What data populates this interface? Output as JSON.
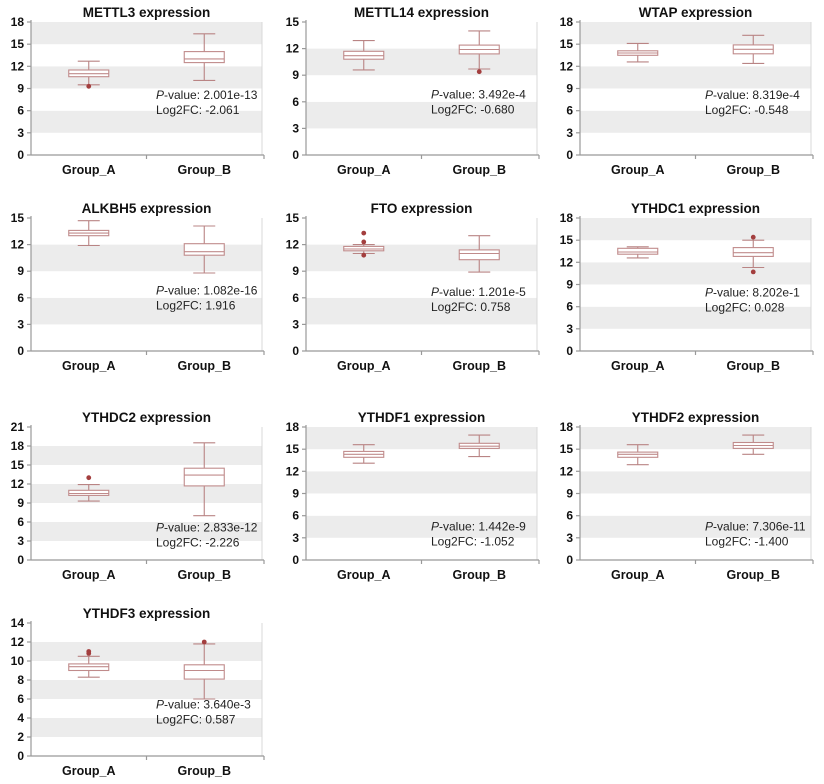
{
  "figure": {
    "description": "Grid of gene expression boxplots comparing Group_A vs Group_B",
    "columns": 3,
    "rows": 4
  },
  "colors": {
    "background": "#ffffff",
    "band_gray": "#ececec",
    "band_white": "#ffffff",
    "axis_line": "#999999",
    "plot_border": "#d9d9d9",
    "box_stroke": "#c08b8b",
    "whisker_stroke": "#b98484",
    "outlier_fill": "#a33e3e",
    "label_text": "#111111",
    "annotation_text": "#222222"
  },
  "annotation_labels": {
    "p_italic": "P",
    "p_rest": "-value:",
    "fc": "Log2FC:"
  },
  "chart_data": {
    "type": "boxplot",
    "categories": [
      "Group_A",
      "Group_B"
    ],
    "grid_bands": "horizontal gray/white bands, one per axis step, gray on odd steps from bottom",
    "panels": [
      {
        "gene": "METTL3",
        "title": "METTL3 expression",
        "ylim": [
          0,
          18
        ],
        "ystep": 3,
        "yticks": [
          0,
          3,
          6,
          9,
          12,
          15,
          18
        ],
        "p_value": "2.001e-13",
        "log2fc": "-2.061",
        "ann_value": 7.6,
        "groups": [
          {
            "label": "Group_A",
            "whisker_low": 9.5,
            "q1": 10.6,
            "median": 11.0,
            "q3": 11.5,
            "whisker_high": 12.7,
            "outliers": [
              9.3
            ]
          },
          {
            "label": "Group_B",
            "whisker_low": 10.1,
            "q1": 12.5,
            "median": 13.0,
            "q3": 14.0,
            "whisker_high": 16.4,
            "outliers": []
          }
        ]
      },
      {
        "gene": "METTL14",
        "title": "METTL14 expression",
        "ylim": [
          0,
          15
        ],
        "ystep": 3,
        "yticks": [
          0,
          3,
          6,
          9,
          12,
          15
        ],
        "p_value": "3.492e-4",
        "log2fc": "-0.680",
        "ann_value": 6.4,
        "groups": [
          {
            "label": "Group_A",
            "whisker_low": 9.6,
            "q1": 10.8,
            "median": 11.2,
            "q3": 11.7,
            "whisker_high": 12.9,
            "outliers": []
          },
          {
            "label": "Group_B",
            "whisker_low": 9.7,
            "q1": 11.4,
            "median": 11.9,
            "q3": 12.4,
            "whisker_high": 14.0,
            "outliers": [
              9.4
            ]
          }
        ]
      },
      {
        "gene": "WTAP",
        "title": "WTAP expression",
        "ylim": [
          0,
          18
        ],
        "ystep": 3,
        "yticks": [
          0,
          3,
          6,
          9,
          12,
          15,
          18
        ],
        "p_value": "8.319e-4",
        "log2fc": "-0.548",
        "ann_value": 7.6,
        "groups": [
          {
            "label": "Group_A",
            "whisker_low": 12.6,
            "q1": 13.5,
            "median": 13.8,
            "q3": 14.1,
            "whisker_high": 15.1,
            "outliers": []
          },
          {
            "label": "Group_B",
            "whisker_low": 12.4,
            "q1": 13.7,
            "median": 14.3,
            "q3": 14.9,
            "whisker_high": 16.2,
            "outliers": []
          }
        ]
      },
      {
        "gene": "ALKBH5",
        "title": "ALKBH5 expression",
        "ylim": [
          0,
          15
        ],
        "ystep": 3,
        "yticks": [
          0,
          3,
          6,
          9,
          12,
          15
        ],
        "p_value": "1.082e-16",
        "log2fc": "1.916",
        "ann_value": 6.4,
        "groups": [
          {
            "label": "Group_A",
            "whisker_low": 11.9,
            "q1": 13.0,
            "median": 13.3,
            "q3": 13.6,
            "whisker_high": 14.7,
            "outliers": []
          },
          {
            "label": "Group_B",
            "whisker_low": 8.8,
            "q1": 10.8,
            "median": 11.2,
            "q3": 12.1,
            "whisker_high": 14.1,
            "outliers": []
          }
        ]
      },
      {
        "gene": "FTO",
        "title": "FTO expression",
        "ylim": [
          0,
          15
        ],
        "ystep": 3,
        "yticks": [
          0,
          3,
          6,
          9,
          12,
          15
        ],
        "p_value": "1.201e-5",
        "log2fc": "0.758",
        "ann_value": 6.2,
        "groups": [
          {
            "label": "Group_A",
            "whisker_low": 11.0,
            "q1": 11.3,
            "median": 11.5,
            "q3": 11.8,
            "whisker_high": 12.0,
            "outliers": [
              13.3,
              12.3,
              10.8
            ]
          },
          {
            "label": "Group_B",
            "whisker_low": 8.9,
            "q1": 10.3,
            "median": 11.0,
            "q3": 11.4,
            "whisker_high": 13.0,
            "outliers": []
          }
        ]
      },
      {
        "gene": "YTHDC1",
        "title": "YTHDC1 expression",
        "ylim": [
          0,
          18
        ],
        "ystep": 3,
        "yticks": [
          0,
          3,
          6,
          9,
          12,
          15,
          18
        ],
        "p_value": "8.202e-1",
        "log2fc": "0.028",
        "ann_value": 7.4,
        "groups": [
          {
            "label": "Group_A",
            "whisker_low": 12.6,
            "q1": 13.1,
            "median": 13.4,
            "q3": 13.9,
            "whisker_high": 14.1,
            "outliers": []
          },
          {
            "label": "Group_B",
            "whisker_low": 11.3,
            "q1": 12.8,
            "median": 13.3,
            "q3": 14.0,
            "whisker_high": 15.0,
            "outliers": [
              15.4,
              10.7
            ]
          }
        ]
      },
      {
        "gene": "YTHDC2",
        "title": "YTHDC2 expression",
        "ylim": [
          0,
          21
        ],
        "ystep": 3,
        "yticks": [
          0,
          3,
          6,
          9,
          12,
          15,
          18,
          21
        ],
        "p_value": "2.833e-12",
        "log2fc": "-2.226",
        "ann_value": 4.5,
        "groups": [
          {
            "label": "Group_A",
            "whisker_low": 9.3,
            "q1": 10.2,
            "median": 10.5,
            "q3": 11.0,
            "whisker_high": 11.9,
            "outliers": [
              13.0
            ]
          },
          {
            "label": "Group_B",
            "whisker_low": 7.0,
            "q1": 11.7,
            "median": 13.4,
            "q3": 14.5,
            "whisker_high": 18.5,
            "outliers": []
          }
        ]
      },
      {
        "gene": "YTHDF1",
        "title": "YTHDF1 expression",
        "ylim": [
          0,
          18
        ],
        "ystep": 3,
        "yticks": [
          0,
          3,
          6,
          9,
          12,
          15,
          18
        ],
        "p_value": "1.442e-9",
        "log2fc": "-1.052",
        "ann_value": 4.0,
        "groups": [
          {
            "label": "Group_A",
            "whisker_low": 13.1,
            "q1": 13.9,
            "median": 14.3,
            "q3": 14.7,
            "whisker_high": 15.6,
            "outliers": []
          },
          {
            "label": "Group_B",
            "whisker_low": 14.0,
            "q1": 15.1,
            "median": 15.4,
            "q3": 15.8,
            "whisker_high": 16.9,
            "outliers": []
          }
        ]
      },
      {
        "gene": "YTHDF2",
        "title": "YTHDF2 expression",
        "ylim": [
          0,
          18
        ],
        "ystep": 3,
        "yticks": [
          0,
          3,
          6,
          9,
          12,
          15,
          18
        ],
        "p_value": "7.306e-11",
        "log2fc": "-1.400",
        "ann_value": 4.0,
        "groups": [
          {
            "label": "Group_A",
            "whisker_low": 12.9,
            "q1": 13.9,
            "median": 14.3,
            "q3": 14.6,
            "whisker_high": 15.6,
            "outliers": []
          },
          {
            "label": "Group_B",
            "whisker_low": 14.3,
            "q1": 15.1,
            "median": 15.5,
            "q3": 15.9,
            "whisker_high": 16.9,
            "outliers": []
          }
        ]
      },
      {
        "gene": "YTHDF3",
        "title": "YTHDF3 expression",
        "ylim": [
          0,
          14
        ],
        "ystep": 2,
        "yticks": [
          0,
          2,
          4,
          6,
          8,
          10,
          12,
          14
        ],
        "p_value": "3.640e-3",
        "log2fc": "0.587",
        "ann_value": 5.0,
        "groups": [
          {
            "label": "Group_A",
            "whisker_low": 8.3,
            "q1": 9.0,
            "median": 9.4,
            "q3": 9.7,
            "whisker_high": 10.5,
            "outliers": [
              10.8,
              11.0
            ]
          },
          {
            "label": "Group_B",
            "whisker_low": 6.0,
            "q1": 8.1,
            "median": 9.0,
            "q3": 9.6,
            "whisker_high": 11.8,
            "outliers": [
              12.0
            ]
          }
        ]
      }
    ]
  }
}
